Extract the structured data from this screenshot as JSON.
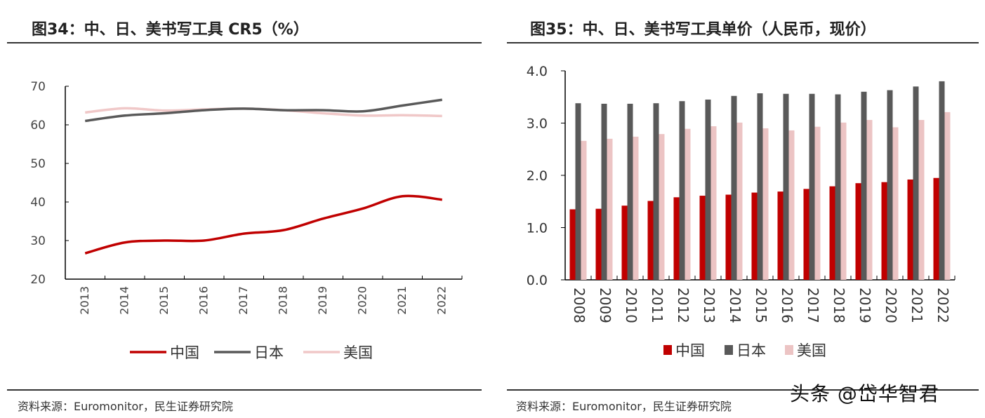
{
  "charts": {
    "left": {
      "title": "图34：中、日、美书写工具 CR5（%）",
      "source": "资料来源：Euromonitor，民生证券研究院"
    },
    "right": {
      "title": "图35：中、日、美书写工具单价（人民币，现价）",
      "source": "资料来源：Euromonitor，民生证券研究院"
    }
  },
  "watermark": "头条 @岱华智君",
  "chart_data": [
    {
      "type": "line",
      "title": "图34：中、日、美书写工具 CR5（%）",
      "categories": [
        "2013",
        "2014",
        "2015",
        "2016",
        "2017",
        "2018",
        "2019",
        "2020",
        "2021",
        "2022"
      ],
      "ylim": [
        20,
        70
      ],
      "yticks": [
        "20",
        "30",
        "40",
        "50",
        "60",
        "70"
      ],
      "grid": false,
      "legend": "bottom",
      "series": [
        {
          "name": "中国",
          "color": "#c00000",
          "values": [
            26.7,
            29.5,
            30.0,
            30.0,
            31.8,
            32.7,
            35.7,
            38.3,
            41.5,
            40.6
          ]
        },
        {
          "name": "日本",
          "color": "#595959",
          "values": [
            61.0,
            62.4,
            63.0,
            63.8,
            64.2,
            63.8,
            63.8,
            63.5,
            65.0,
            66.5
          ]
        },
        {
          "name": "美国",
          "color": "#f0c8c8",
          "values": [
            63.2,
            64.3,
            63.7,
            64.0,
            64.2,
            63.8,
            63.0,
            62.4,
            62.5,
            62.3
          ]
        }
      ]
    },
    {
      "type": "bar",
      "title": "图35：中、日、美书写工具单价（人民币，现价）",
      "categories": [
        "2008",
        "2009",
        "2010",
        "2011",
        "2012",
        "2013",
        "2014",
        "2015",
        "2016",
        "2017",
        "2018",
        "2019",
        "2020",
        "2021",
        "2022"
      ],
      "ylim": [
        0,
        4
      ],
      "yticks": [
        "0.0",
        "1.0",
        "2.0",
        "3.0",
        "4.0"
      ],
      "grid": false,
      "legend": "bottom",
      "series": [
        {
          "name": "中国",
          "color": "#c00000",
          "values": [
            1.35,
            1.36,
            1.42,
            1.51,
            1.58,
            1.61,
            1.63,
            1.67,
            1.69,
            1.74,
            1.79,
            1.85,
            1.87,
            1.92,
            1.95
          ]
        },
        {
          "name": "日本",
          "color": "#595959",
          "values": [
            3.38,
            3.37,
            3.37,
            3.38,
            3.42,
            3.45,
            3.52,
            3.57,
            3.56,
            3.56,
            3.55,
            3.6,
            3.63,
            3.7,
            3.8
          ]
        },
        {
          "name": "美国",
          "color": "#ecc4c4",
          "values": [
            2.66,
            2.7,
            2.74,
            2.79,
            2.89,
            2.94,
            3.01,
            2.9,
            2.86,
            2.93,
            3.01,
            3.06,
            2.92,
            3.06,
            3.21
          ]
        }
      ]
    }
  ]
}
